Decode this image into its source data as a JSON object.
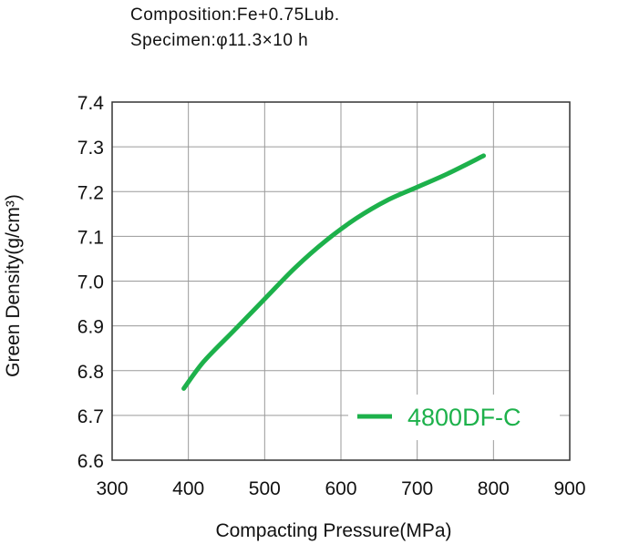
{
  "annotations": {
    "composition": "Composition:Fe+0.75Lub.",
    "specimen": "Specimen:φ11.3×10 h"
  },
  "chart_data": {
    "type": "line",
    "xlabel": "Compacting Pressure(MPa)",
    "ylabel": "Green Density(g/cm³)",
    "xlim": [
      300,
      900
    ],
    "ylim": [
      6.6,
      7.4
    ],
    "x_ticks": [
      "300",
      "400",
      "500",
      "600",
      "700",
      "800",
      "900"
    ],
    "y_ticks": [
      "6.6",
      "6.7",
      "6.8",
      "6.9",
      "7.0",
      "7.1",
      "7.2",
      "7.3",
      "7.4"
    ],
    "grid": true,
    "legend_position": "bottom-right",
    "series": [
      {
        "name": "4800DF-C",
        "color": "#1db14b",
        "x": [
          394,
          420,
          460,
          500,
          540,
          580,
          620,
          660,
          700,
          740,
          787
        ],
        "y": [
          6.76,
          6.82,
          6.89,
          6.96,
          7.03,
          7.09,
          7.14,
          7.18,
          7.21,
          7.24,
          7.28
        ]
      }
    ]
  }
}
